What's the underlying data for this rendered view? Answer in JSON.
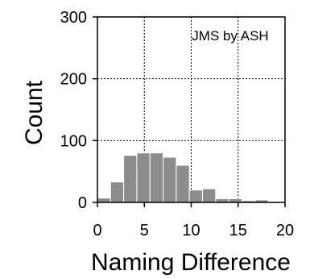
{
  "chart_data": {
    "type": "bar",
    "bin_width": 1.4,
    "bins_start": [
      0,
      1.4,
      2.8,
      4.2,
      5.6,
      7.0,
      8.4,
      9.8,
      11.2,
      12.6,
      14.0,
      15.4,
      16.8,
      18.2
    ],
    "values": [
      7,
      33,
      76,
      80,
      80,
      73,
      60,
      20,
      22,
      6,
      6,
      3,
      4,
      1
    ],
    "xlabel": "Naming Difference",
    "ylabel": "Count",
    "xlim": [
      0,
      20
    ],
    "ylim": [
      0,
      300
    ],
    "xticks": [
      "0",
      "5",
      "10",
      "15",
      "20"
    ],
    "yticks": [
      "0",
      "100",
      "200",
      "300"
    ],
    "annotation": "JMS by ASH",
    "grid": true,
    "bar_color": "#8c8c8c"
  }
}
